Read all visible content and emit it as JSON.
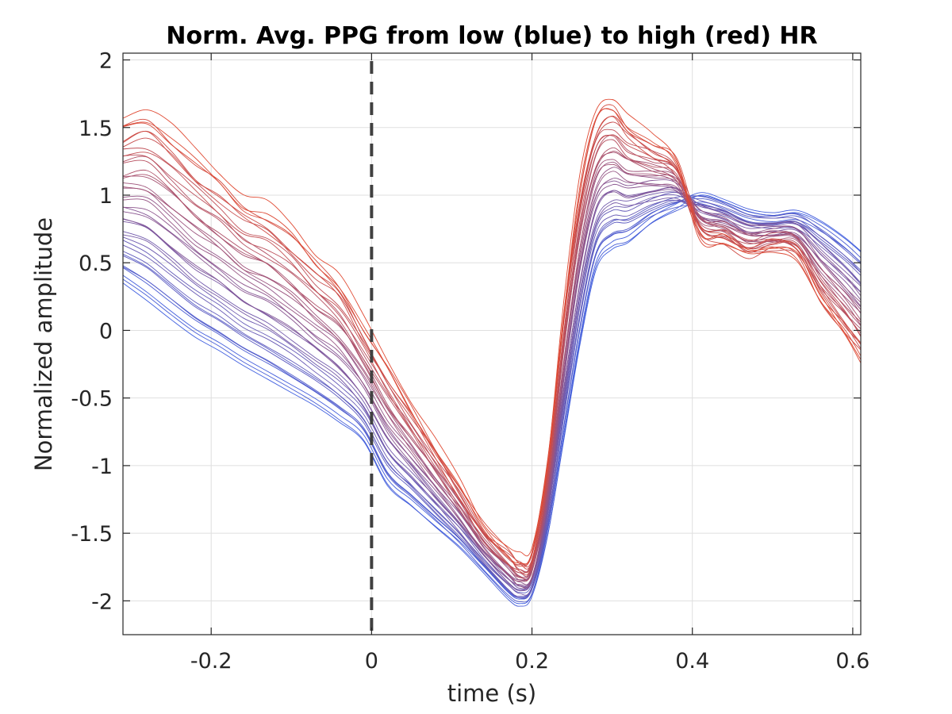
{
  "chart_data": {
    "type": "line",
    "title": "Norm. Avg. PPG from low (blue) to high (red) HR",
    "xlabel": "time (s)",
    "ylabel": "Normalized amplitude",
    "xlim": [
      -0.31,
      0.61
    ],
    "ylim": [
      -2.25,
      2.05
    ],
    "xticks": [
      -0.2,
      0,
      0.2,
      0.4,
      0.6
    ],
    "xtick_labels": [
      "-0.2",
      "0",
      "0.2",
      "0.4",
      "0.6"
    ],
    "yticks": [
      2,
      1.5,
      1,
      0.5,
      0,
      -0.5,
      -1,
      -1.5,
      -2
    ],
    "ytick_labels": [
      "2",
      "1.5",
      "1",
      "0.5",
      "0",
      "-0.5",
      "-1",
      "-1.5",
      "-2"
    ],
    "grid": true,
    "reference_line": {
      "x": 0,
      "style": "dashed",
      "color": "#404040"
    },
    "color_low": "#3f5fe0",
    "color_high": "#e04a33",
    "series_count": 40,
    "x": [
      -0.31,
      -0.28,
      -0.25,
      -0.22,
      -0.19,
      -0.16,
      -0.13,
      -0.1,
      -0.07,
      -0.04,
      -0.01,
      0.02,
      0.05,
      0.08,
      0.11,
      0.14,
      0.17,
      0.185,
      0.2,
      0.22,
      0.24,
      0.26,
      0.28,
      0.3,
      0.32,
      0.35,
      0.38,
      0.41,
      0.44,
      0.47,
      0.5,
      0.53,
      0.56,
      0.59,
      0.61
    ],
    "envelope_low": [
      0.35,
      0.22,
      0.08,
      -0.05,
      -0.15,
      -0.26,
      -0.36,
      -0.46,
      -0.56,
      -0.68,
      -0.82,
      -1.15,
      -1.3,
      -1.45,
      -1.6,
      -1.78,
      -1.97,
      -2.02,
      -1.95,
      -1.5,
      -0.8,
      -0.1,
      0.45,
      0.6,
      0.65,
      0.8,
      0.9,
      1.0,
      0.95,
      0.88,
      0.85,
      0.87,
      0.8,
      0.68,
      0.58
    ],
    "envelope_high": [
      1.55,
      1.62,
      1.48,
      1.3,
      1.15,
      0.98,
      0.9,
      0.75,
      0.55,
      0.38,
      0.05,
      -0.25,
      -0.55,
      -0.85,
      -1.15,
      -1.45,
      -1.62,
      -1.7,
      -1.65,
      -0.95,
      0.2,
      1.1,
      1.6,
      1.7,
      1.55,
      1.4,
      1.25,
      0.7,
      0.65,
      0.55,
      0.6,
      0.55,
      0.2,
      -0.05,
      -0.22
    ]
  }
}
